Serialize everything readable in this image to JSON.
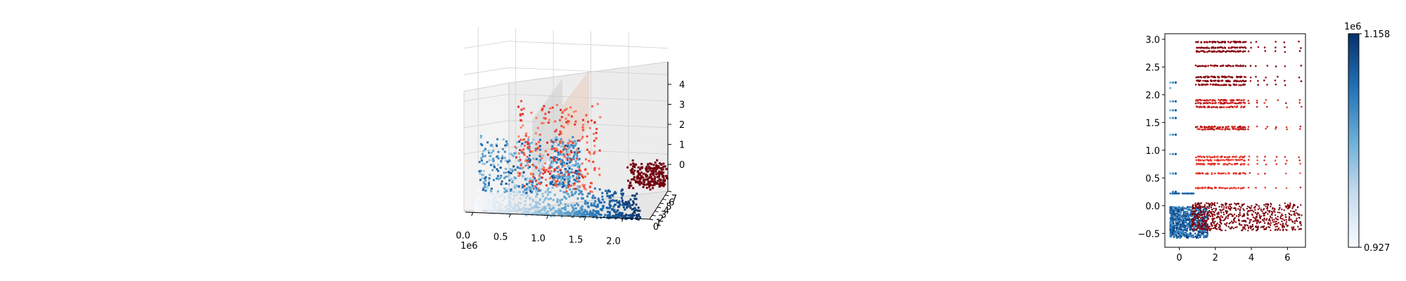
{
  "chart_data": [
    {
      "type": "scatter",
      "projection": "3d",
      "x_ticks": [
        "0.0",
        "0.5",
        "1.0",
        "1.5",
        "2.0"
      ],
      "x_offset": "1e6",
      "y_ticks": [
        "0",
        "1",
        "2",
        "3",
        "4",
        "5",
        "6",
        "7"
      ],
      "z_ticks": [
        "0",
        "1",
        "2",
        "3",
        "4"
      ],
      "xlim": [
        -0.1,
        2.35
      ],
      "ylim": [
        0,
        7
      ],
      "zlim": [
        -0.6,
        4.6
      ],
      "grid": true,
      "colormaps": [
        "Blues",
        "Reds"
      ],
      "point_groups": [
        {
          "name": "",
          "colormap": "Blues",
          "x_range": [
            0.0,
            2.2
          ],
          "y_range": [
            0,
            1
          ],
          "z_range": [
            -0.6,
            0.4
          ]
        },
        {
          "name": "",
          "colormap": "Blues",
          "x_range": [
            0.05,
            0.9
          ],
          "y_range": [
            0,
            1
          ],
          "z_range": [
            0.2,
            2.2
          ]
        },
        {
          "name": "",
          "colormap": "Blues",
          "x_range": [
            1.0,
            1.4
          ],
          "y_range": [
            0,
            1
          ],
          "z_range": [
            0.5,
            2.3
          ]
        },
        {
          "name": "",
          "colormap": "Reds",
          "x_range": [
            0.5,
            1.6
          ],
          "y_range": [
            1,
            3
          ],
          "z_range": [
            0.2,
            3.3
          ]
        },
        {
          "name": "",
          "colormap": "Reds",
          "x_range": [
            1.85,
            2.35
          ],
          "y_range": [
            5,
            7
          ],
          "z_range": [
            -0.3,
            0.6
          ]
        }
      ]
    },
    {
      "type": "scatter",
      "xlim": [
        -0.8,
        7.0
      ],
      "ylim": [
        -0.75,
        3.1
      ],
      "x_ticks": [
        0,
        2,
        4,
        6
      ],
      "y_ticks": [
        -0.5,
        0.0,
        0.5,
        1.0,
        1.5,
        2.0,
        2.5,
        3.0
      ],
      "y_tick_labels": [
        "−0.5",
        "0.0",
        "0.5",
        "1.0",
        "1.5",
        "2.0",
        "2.5",
        "3.0"
      ],
      "grid": false,
      "red_rows": [
        2.95,
        2.85,
        2.78,
        2.52,
        2.32,
        2.25,
        2.18,
        1.9,
        1.85,
        1.78,
        1.42,
        1.38,
        0.88,
        0.82,
        0.75,
        0.58,
        0.32
      ],
      "red_x_columns": [
        1.0,
        1.2,
        1.4,
        1.6,
        1.8,
        2.0,
        2.2,
        2.4,
        2.6,
        2.8,
        3.0,
        3.2,
        3.4,
        3.6,
        3.9,
        4.3,
        4.8,
        5.4,
        5.9,
        6.7
      ],
      "blue_column_x": [
        -0.5,
        -0.35,
        -0.2
      ],
      "blue_column_y": [
        2.22,
        2.12,
        1.88,
        1.72,
        1.58,
        1.28,
        0.93,
        0.62,
        0.58,
        0.25
      ],
      "colorbar": {
        "colormap": "Blues",
        "min_label": "0.927",
        "max_label": "1.158",
        "offset_label": "1e6",
        "min": 0.927,
        "max": 1.158
      }
    }
  ]
}
